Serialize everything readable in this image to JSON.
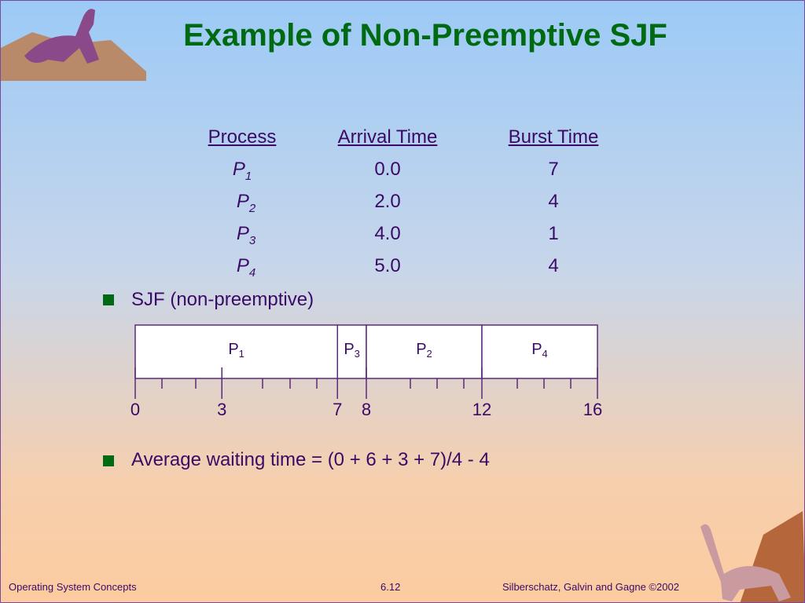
{
  "title": "Example of Non-Preemptive SJF",
  "table": {
    "headers": [
      "Process",
      "Arrival Time",
      "Burst Time"
    ],
    "rows": [
      [
        {
          "name": "P",
          "sub": "1"
        },
        "0.0",
        "7"
      ],
      [
        {
          "name": "P",
          "sub": "2"
        },
        "2.0",
        "4"
      ],
      [
        {
          "name": "P",
          "sub": "3"
        },
        "4.0",
        "1"
      ],
      [
        {
          "name": "P",
          "sub": "4"
        },
        "5.0",
        "4"
      ]
    ]
  },
  "bullets": [
    "SJF (non-preemptive)",
    "Average waiting time = (0 + 6 + 3 + 7)/4 - 4"
  ],
  "gantt": {
    "xlim": [
      0,
      16
    ],
    "segments": [
      {
        "name": "P",
        "sub": "1",
        "start": 0,
        "end": 7
      },
      {
        "name": "P",
        "sub": "3",
        "start": 7,
        "end": 8
      },
      {
        "name": "P",
        "sub": "2",
        "start": 8,
        "end": 12
      },
      {
        "name": "P",
        "sub": "4",
        "start": 12,
        "end": 16
      }
    ],
    "ticks": [
      0,
      3,
      7,
      8,
      12,
      16
    ]
  },
  "footer": {
    "left": "Operating System Concepts",
    "center": "6.12",
    "right": "Silberschatz, Galvin and  Gagne ©2002"
  }
}
